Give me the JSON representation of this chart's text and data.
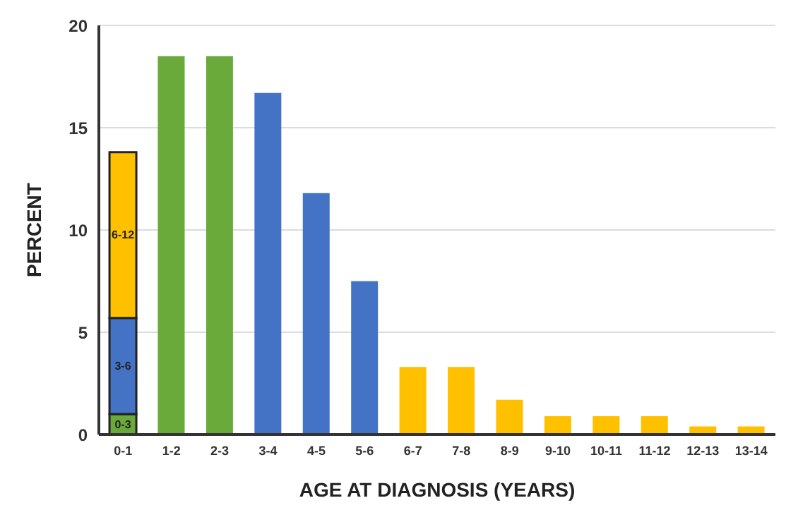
{
  "chart_data": {
    "type": "bar",
    "stacked": true,
    "xlabel": "AGE AT DIAGNOSIS (YEARS)",
    "ylabel": "PERCENT",
    "categories": [
      "0-1",
      "1-2",
      "2-3",
      "3-4",
      "4-5",
      "5-6",
      "6-7",
      "7-8",
      "8-9",
      "9-10",
      "10-11",
      "11-12",
      "12-13",
      "13-14"
    ],
    "series": [
      {
        "name": "0-3",
        "color": "#6aaa3a",
        "values": [
          1.0,
          18.5,
          18.5,
          null,
          null,
          null,
          null,
          null,
          null,
          null,
          null,
          null,
          null,
          null
        ]
      },
      {
        "name": "3-6",
        "color": "#4472c4",
        "values": [
          4.7,
          null,
          null,
          16.7,
          11.8,
          7.5,
          null,
          null,
          null,
          null,
          null,
          null,
          null,
          null
        ]
      },
      {
        "name": "6-12",
        "color": "#ffc000",
        "values": [
          8.1,
          null,
          null,
          null,
          null,
          null,
          3.3,
          3.3,
          1.7,
          0.9,
          0.9,
          0.9,
          0.4,
          0.4
        ]
      }
    ],
    "ylim": [
      0,
      20
    ],
    "yticks": [
      0,
      5,
      10,
      15,
      20
    ],
    "grid": "y",
    "legend": false
  }
}
